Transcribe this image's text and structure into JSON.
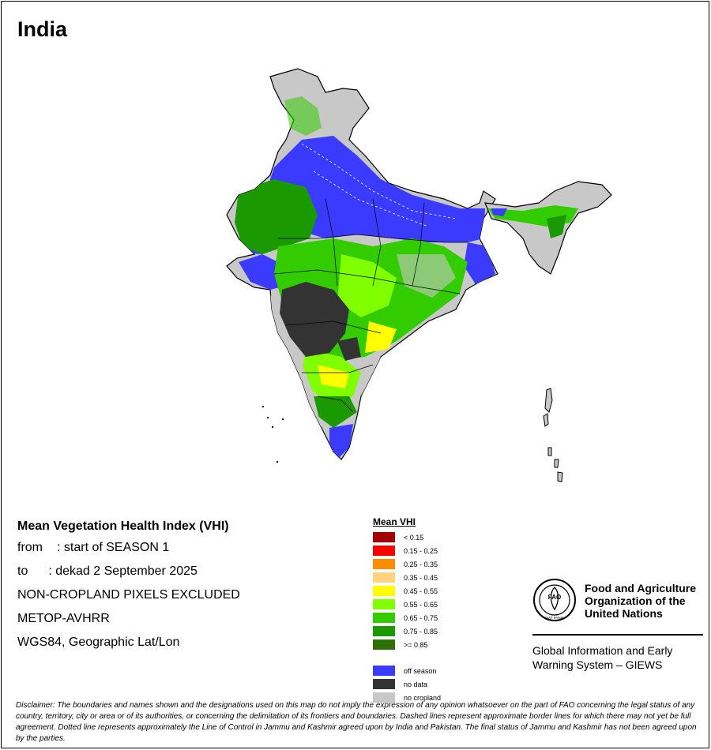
{
  "map": {
    "title": "India"
  },
  "info": {
    "heading": "Mean Vegetation Health Index (VHI)",
    "from_label": "from",
    "from_value": ": start of SEASON 1",
    "to_label": "to",
    "to_value": ": dekad 2 September 2025",
    "mask": "NON-CROPLAND PIXELS EXCLUDED",
    "sensor": "METOP-AVHRR",
    "projection": "WGS84, Geographic Lat/Lon"
  },
  "legend": {
    "title": "Mean VHI",
    "classes": [
      {
        "label": "< 0.15",
        "color": "#a50000"
      },
      {
        "label": "0.15 - 0.25",
        "color": "#ff0000"
      },
      {
        "label": "0.25 - 0.35",
        "color": "#ff8c00"
      },
      {
        "label": "0.35 - 0.45",
        "color": "#ffd27f"
      },
      {
        "label": "0.45 - 0.55",
        "color": "#ffff00"
      },
      {
        "label": "0.55 - 0.65",
        "color": "#7fff00"
      },
      {
        "label": "0.65 - 0.75",
        "color": "#33cc00"
      },
      {
        "label": "0.75 - 0.85",
        "color": "#1a9900"
      },
      {
        "label": ">= 0.85",
        "color": "#2e7008"
      }
    ],
    "other": [
      {
        "label": "off season",
        "color": "#3b3bff"
      },
      {
        "label": "no data",
        "color": "#333333"
      },
      {
        "label": "no cropland",
        "color": "#c8c8c8"
      }
    ]
  },
  "org": {
    "name": "Food and Agriculture Organization of the United Nations",
    "logo_text": "FAO",
    "logo_motto": "FIAT PANIS",
    "system": "Global Information and Early Warning System – GIEWS"
  },
  "disclaimer": "Disclaimer: The boundaries and names shown and the designations used on this map do not imply the expression of any opinion whatsoever on the part of FAO concerning the legal status of any country, territory, city or area or of its authorities, or concerning the delimitation of its frontiers and boundaries. Dashed lines represent approximate border lines for which there may not yet be full agreement. Dotted line represents approximately the Line of Control in Jammu and Kashmir agreed upon by India and Pakistan. The final status of Jammu and Kashmir has not been agreed upon by the parties."
}
